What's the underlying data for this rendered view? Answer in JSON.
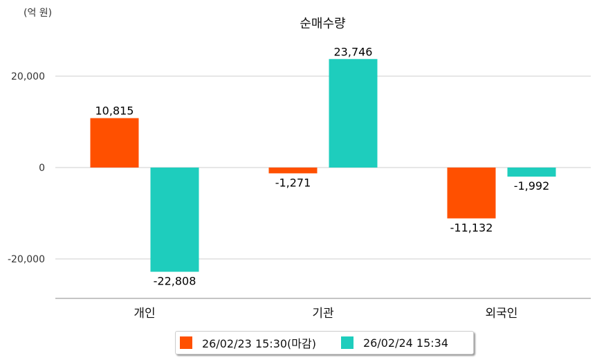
{
  "chart_data": {
    "type": "bar",
    "title": "순매수량",
    "unit_label": "(억 원)",
    "categories": [
      "개인",
      "기관",
      "외국인"
    ],
    "series": [
      {
        "name": "26/02/23 15:30(마감)",
        "color": "#ff5000",
        "values": [
          10815,
          -1271,
          -11132
        ],
        "labels": [
          "10,815",
          "-1,271",
          "-11,132"
        ]
      },
      {
        "name": "26/02/24 15:34",
        "color": "#1ecdbd",
        "values": [
          -22808,
          23746,
          -1992
        ],
        "labels": [
          "-22,808",
          "23,746",
          "-1,992"
        ]
      }
    ],
    "yticks": [
      20000,
      0,
      -20000
    ],
    "ytick_labels": [
      "20,000",
      "0",
      "-20,000"
    ],
    "ylim": [
      -28500,
      29000
    ],
    "grid": true,
    "legend_position": "bottom"
  }
}
